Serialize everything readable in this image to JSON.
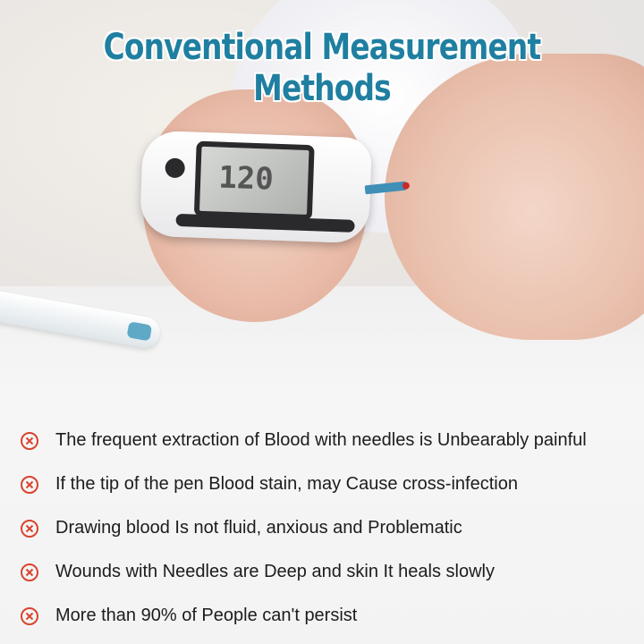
{
  "title": "Conventional Measurement Methods",
  "meter_display": "120",
  "colors": {
    "title": "#1f7fa0",
    "icon": "#d9442f"
  },
  "items": [
    {
      "icon": "x-circle-icon",
      "text": "The frequent extraction of Blood with needles is Unbearably painful"
    },
    {
      "icon": "x-circle-icon",
      "text": "If the tip of the pen Blood stain, may Cause cross-infection"
    },
    {
      "icon": "x-circle-icon",
      "text": "Drawing blood Is not fluid, anxious and Problematic"
    },
    {
      "icon": "x-circle-icon",
      "text": "Wounds with Needles are Deep and skin It heals slowly"
    },
    {
      "icon": "x-circle-icon",
      "text": "More than 90% of People can't persist"
    }
  ]
}
